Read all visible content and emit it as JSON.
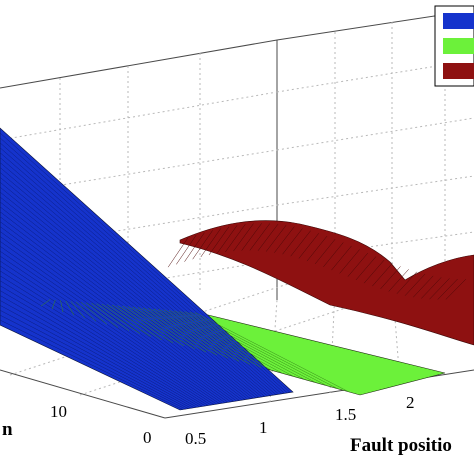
{
  "chart_data": {
    "type": "surface",
    "title": "",
    "xlabel": "Fault positio",
    "ylabel": "n",
    "zlabel": "",
    "x_ticks": [
      "0.5",
      "1",
      "1.5",
      "2"
    ],
    "y_ticks": [
      "0",
      "10"
    ],
    "grid": true,
    "legend": {
      "placement": "top-right",
      "entries": [
        {
          "name": "",
          "color": "#1533cc"
        },
        {
          "name": "",
          "color": "#6cf13a"
        },
        {
          "name": "",
          "color": "#8e1111"
        }
      ]
    },
    "series": [
      {
        "name": "",
        "color": "#1533cc",
        "shape": "inclined-plane"
      },
      {
        "name": "",
        "color": "#6cf13a",
        "shape": "flat-plane"
      },
      {
        "name": "",
        "color": "#8e1111",
        "shape": "humped-surface"
      }
    ]
  }
}
